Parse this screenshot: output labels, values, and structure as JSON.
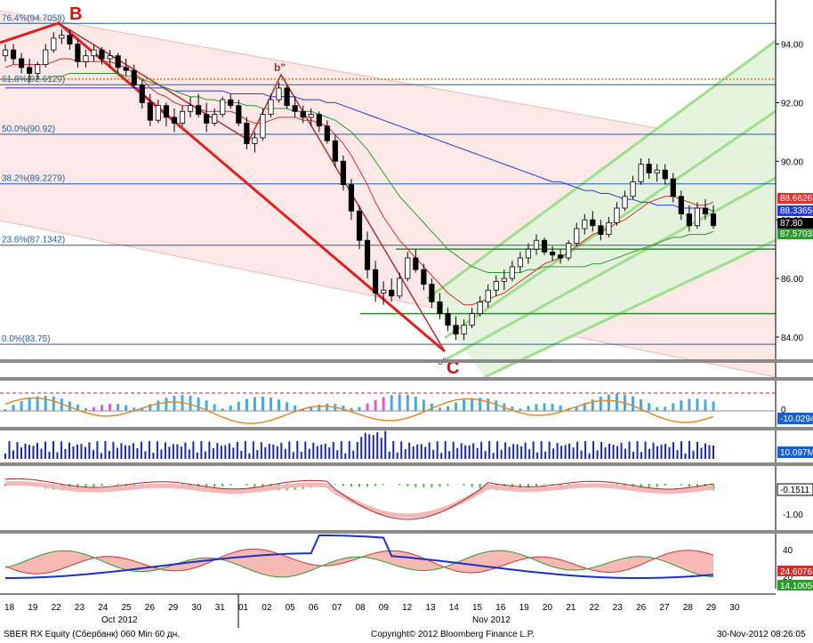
{
  "footer": {
    "left": "SBER RX Equity (Сбербанк) 060 Min 60 дн.",
    "center": "Copyright© 2012 Bloomberg Finance L.P.",
    "right": "30-Nov-2012 08:26:05"
  },
  "chart_data": {
    "type": "candlestick",
    "price_panel": {
      "ylim": [
        83.3,
        95.2
      ],
      "yticks": [
        "94.00",
        "92.00",
        "90.00",
        "88.00",
        "86.00",
        "84.00"
      ],
      "fib_levels": [
        {
          "label": "76.4%(94.7058)",
          "value": 94.7058
        },
        {
          "label": "61.8%(92.6129)",
          "value": 92.6129
        },
        {
          "label": "50.0%(90.92)",
          "value": 90.92
        },
        {
          "label": "38.2%(89.2279)",
          "value": 89.2279
        },
        {
          "label": "23.6%(87.1342)",
          "value": 87.1342
        },
        {
          "label": "0.0%(83.75)",
          "value": 83.75
        }
      ],
      "dotted_level": 92.8,
      "wave_labels": [
        {
          "text": "B",
          "color": "#d01010"
        },
        {
          "text": "C",
          "color": "#d01010"
        },
        {
          "text": "b\"",
          "color": "#a03030"
        },
        {
          "text": "c\"",
          "color": "#a03030"
        }
      ],
      "last_values": [
        {
          "label": "88.6626",
          "color": "#e03030"
        },
        {
          "label": "88.3365",
          "color": "#2a3bd6"
        },
        {
          "label": "87.80",
          "color": "#000000"
        },
        {
          "label": "87.5703",
          "color": "#2e9a2e"
        }
      ],
      "series": {
        "ohlc": [
          [
            93.6,
            94.0,
            93.4,
            93.8
          ],
          [
            93.8,
            94.0,
            93.3,
            93.5
          ],
          [
            93.5,
            93.7,
            93.0,
            93.2
          ],
          [
            93.2,
            93.5,
            92.7,
            93.0
          ],
          [
            93.0,
            93.4,
            92.8,
            93.3
          ],
          [
            93.3,
            94.0,
            93.2,
            93.8
          ],
          [
            93.8,
            94.4,
            93.7,
            94.2
          ],
          [
            94.2,
            94.5,
            94.0,
            94.3
          ],
          [
            94.3,
            94.5,
            93.8,
            94.0
          ],
          [
            94.0,
            94.2,
            93.2,
            93.4
          ],
          [
            93.4,
            93.8,
            93.2,
            93.6
          ],
          [
            93.6,
            94.0,
            93.4,
            93.8
          ],
          [
            93.8,
            93.9,
            93.3,
            93.5
          ],
          [
            93.5,
            93.8,
            93.2,
            93.6
          ],
          [
            93.6,
            93.7,
            93.0,
            93.2
          ],
          [
            93.2,
            93.5,
            92.9,
            93.1
          ],
          [
            93.1,
            93.3,
            92.5,
            92.6
          ],
          [
            92.6,
            92.8,
            91.8,
            92.0
          ],
          [
            92.0,
            92.3,
            91.2,
            91.4
          ],
          [
            91.4,
            92.1,
            91.3,
            91.9
          ],
          [
            91.9,
            92.0,
            91.2,
            91.5
          ],
          [
            91.5,
            91.8,
            91.0,
            91.3
          ],
          [
            91.3,
            91.9,
            91.2,
            91.7
          ],
          [
            91.7,
            92.2,
            91.5,
            91.9
          ],
          [
            91.9,
            92.3,
            91.5,
            91.6
          ],
          [
            91.6,
            92.0,
            91.0,
            91.3
          ],
          [
            91.3,
            91.8,
            91.2,
            91.6
          ],
          [
            91.6,
            92.2,
            91.5,
            92.1
          ],
          [
            92.1,
            92.3,
            91.8,
            91.9
          ],
          [
            91.9,
            92.1,
            91.2,
            91.3
          ],
          [
            91.3,
            91.5,
            90.4,
            90.6
          ],
          [
            90.6,
            91.0,
            90.3,
            90.8
          ],
          [
            90.8,
            91.8,
            90.7,
            91.6
          ],
          [
            91.6,
            92.3,
            91.5,
            92.1
          ],
          [
            92.1,
            92.7,
            92.0,
            92.5
          ],
          [
            92.5,
            92.6,
            91.8,
            91.9
          ],
          [
            91.9,
            92.2,
            91.5,
            91.7
          ],
          [
            91.7,
            91.9,
            91.3,
            91.5
          ],
          [
            91.5,
            91.8,
            91.2,
            91.6
          ],
          [
            91.6,
            91.7,
            91.0,
            91.2
          ],
          [
            91.2,
            91.4,
            90.6,
            90.7
          ],
          [
            90.7,
            90.9,
            89.8,
            90.0
          ],
          [
            90.0,
            90.2,
            89.0,
            89.2
          ],
          [
            89.2,
            89.4,
            88.0,
            88.3
          ],
          [
            88.3,
            88.5,
            87.0,
            87.3
          ],
          [
            87.3,
            87.6,
            86.0,
            86.3
          ],
          [
            86.3,
            86.6,
            85.2,
            85.5
          ],
          [
            85.5,
            85.9,
            85.1,
            85.6
          ],
          [
            85.6,
            86.0,
            85.2,
            85.4
          ],
          [
            85.4,
            86.2,
            85.3,
            86.0
          ],
          [
            86.0,
            86.9,
            85.9,
            86.7
          ],
          [
            86.7,
            87.0,
            86.2,
            86.3
          ],
          [
            86.3,
            86.5,
            85.6,
            85.8
          ],
          [
            85.8,
            86.0,
            85.0,
            85.2
          ],
          [
            85.2,
            85.5,
            84.6,
            84.8
          ],
          [
            84.8,
            85.0,
            84.2,
            84.4
          ],
          [
            84.4,
            84.7,
            83.9,
            84.1
          ],
          [
            84.1,
            84.6,
            83.9,
            84.4
          ],
          [
            84.4,
            85.0,
            84.3,
            84.8
          ],
          [
            84.8,
            85.4,
            84.7,
            85.2
          ],
          [
            85.2,
            85.8,
            85.0,
            85.6
          ],
          [
            85.6,
            86.1,
            85.4,
            85.9
          ],
          [
            85.9,
            86.3,
            85.6,
            86.0
          ],
          [
            86.0,
            86.6,
            85.9,
            86.4
          ],
          [
            86.4,
            86.9,
            86.2,
            86.7
          ],
          [
            86.7,
            87.2,
            86.5,
            87.0
          ],
          [
            87.0,
            87.5,
            86.8,
            87.3
          ],
          [
            87.3,
            87.4,
            86.8,
            86.9
          ],
          [
            86.9,
            87.1,
            86.6,
            86.8
          ],
          [
            86.8,
            87.0,
            86.5,
            86.7
          ],
          [
            86.7,
            87.3,
            86.6,
            87.2
          ],
          [
            87.2,
            87.9,
            87.1,
            87.7
          ],
          [
            87.7,
            88.2,
            87.5,
            88.0
          ],
          [
            88.0,
            88.3,
            87.6,
            87.8
          ],
          [
            87.8,
            88.0,
            87.3,
            87.5
          ],
          [
            87.5,
            88.1,
            87.4,
            87.9
          ],
          [
            87.9,
            88.6,
            87.8,
            88.4
          ],
          [
            88.4,
            89.0,
            88.3,
            88.8
          ],
          [
            88.8,
            89.5,
            88.7,
            89.3
          ],
          [
            89.3,
            90.1,
            89.2,
            89.9
          ],
          [
            89.9,
            90.1,
            89.4,
            89.6
          ],
          [
            89.6,
            89.9,
            89.3,
            89.7
          ],
          [
            89.7,
            89.9,
            89.2,
            89.4
          ],
          [
            89.4,
            89.6,
            88.6,
            88.8
          ],
          [
            88.8,
            89.0,
            88.0,
            88.2
          ],
          [
            88.2,
            88.5,
            87.6,
            87.8
          ],
          [
            87.8,
            88.6,
            87.7,
            88.4
          ],
          [
            88.4,
            88.7,
            88.0,
            88.2
          ],
          [
            88.2,
            88.5,
            87.7,
            87.8
          ]
        ],
        "ema_red": [
          93.2,
          93.3,
          93.3,
          93.3,
          93.3,
          93.3,
          93.4,
          93.5,
          93.5,
          93.4,
          93.4,
          93.4,
          93.4,
          93.4,
          93.3,
          93.2,
          93.0,
          92.8,
          92.5,
          92.3,
          92.2,
          92.0,
          91.9,
          91.9,
          91.8,
          91.7,
          91.7,
          91.7,
          91.7,
          91.6,
          91.4,
          91.3,
          91.3,
          91.4,
          91.5,
          91.5,
          91.5,
          91.4,
          91.4,
          91.3,
          91.2,
          90.9,
          90.6,
          90.2,
          89.7,
          89.2,
          88.6,
          88.1,
          87.7,
          87.3,
          87.0,
          86.7,
          86.4,
          86.1,
          85.8,
          85.5,
          85.3,
          85.1,
          85.1,
          85.2,
          85.3,
          85.4,
          85.5,
          85.7,
          85.9,
          86.1,
          86.3,
          86.5,
          86.6,
          86.7,
          86.9,
          87.1,
          87.3,
          87.5,
          87.6,
          87.7,
          87.9,
          88.0,
          88.2,
          88.4,
          88.6,
          88.7,
          88.8,
          88.8,
          88.7,
          88.6,
          88.5,
          88.5,
          88.6
        ],
        "ema_green": [
          92.8,
          92.8,
          92.8,
          92.8,
          92.8,
          92.8,
          92.9,
          92.9,
          93.0,
          93.0,
          93.0,
          93.0,
          93.0,
          93.0,
          93.0,
          92.9,
          92.9,
          92.8,
          92.7,
          92.6,
          92.5,
          92.4,
          92.3,
          92.2,
          92.2,
          92.1,
          92.1,
          92.0,
          92.0,
          92.0,
          91.9,
          91.9,
          91.8,
          91.8,
          91.8,
          91.8,
          91.7,
          91.7,
          91.7,
          91.6,
          91.5,
          91.4,
          91.2,
          91.0,
          90.7,
          90.4,
          90.0,
          89.6,
          89.2,
          88.8,
          88.5,
          88.2,
          87.9,
          87.6,
          87.3,
          87.0,
          86.8,
          86.6,
          86.4,
          86.3,
          86.2,
          86.2,
          86.2,
          86.2,
          86.2,
          86.3,
          86.3,
          86.4,
          86.4,
          86.4,
          86.4,
          86.4,
          86.4,
          86.5,
          86.5,
          86.6,
          86.7,
          86.8,
          86.9,
          87.0,
          87.1,
          87.2,
          87.3,
          87.4,
          87.4,
          87.5,
          87.5,
          87.5,
          87.6
        ],
        "ema_blue": [
          92.5,
          92.5,
          92.5,
          92.5,
          92.5,
          92.5,
          92.5,
          92.5,
          92.5,
          92.5,
          92.5,
          92.5,
          92.5,
          92.5,
          92.5,
          92.5,
          92.5,
          92.5,
          92.5,
          92.5,
          92.5,
          92.4,
          92.4,
          92.4,
          92.4,
          92.4,
          92.4,
          92.4,
          92.3,
          92.3,
          92.3,
          92.3,
          92.3,
          92.2,
          92.2,
          92.2,
          92.2,
          92.1,
          92.1,
          92.1,
          92.0,
          92.0,
          91.9,
          91.8,
          91.7,
          91.6,
          91.5,
          91.4,
          91.3,
          91.2,
          91.1,
          91.0,
          90.9,
          90.8,
          90.7,
          90.6,
          90.5,
          90.4,
          90.3,
          90.2,
          90.1,
          90.0,
          89.9,
          89.8,
          89.7,
          89.6,
          89.5,
          89.4,
          89.3,
          89.3,
          89.2,
          89.1,
          89.0,
          89.0,
          88.9,
          88.9,
          88.8,
          88.7,
          88.7,
          88.6,
          88.6,
          88.5,
          88.5,
          88.5,
          88.4,
          88.4,
          88.4,
          88.4,
          88.3
        ]
      }
    },
    "x_axis": {
      "day_labels": [
        "18",
        "19",
        "22",
        "23",
        "24",
        "25",
        "26",
        "29",
        "30",
        "31",
        "01",
        "02",
        "05",
        "06",
        "07",
        "08",
        "09",
        "12",
        "13",
        "14",
        "15",
        "16",
        "19",
        "20",
        "21",
        "22",
        "23",
        "26",
        "27",
        "28",
        "29",
        "30"
      ],
      "month_labels": [
        "Oct 2012",
        "Nov 2012"
      ]
    },
    "indicator_panels": [
      {
        "name": "histogram_oscillator",
        "last_value_label": "-10.0294",
        "tick_labels": [
          "0"
        ]
      },
      {
        "name": "volume",
        "last_value_label": "10.097M",
        "tick_labels": []
      },
      {
        "name": "macd",
        "last_value_label": "-0.1511",
        "tick_labels": [
          "-1.00"
        ]
      },
      {
        "name": "dmi",
        "last_value_labels": [
          "24.6076",
          "14.1005"
        ],
        "tick_labels": [
          "40",
          "20"
        ]
      }
    ]
  }
}
